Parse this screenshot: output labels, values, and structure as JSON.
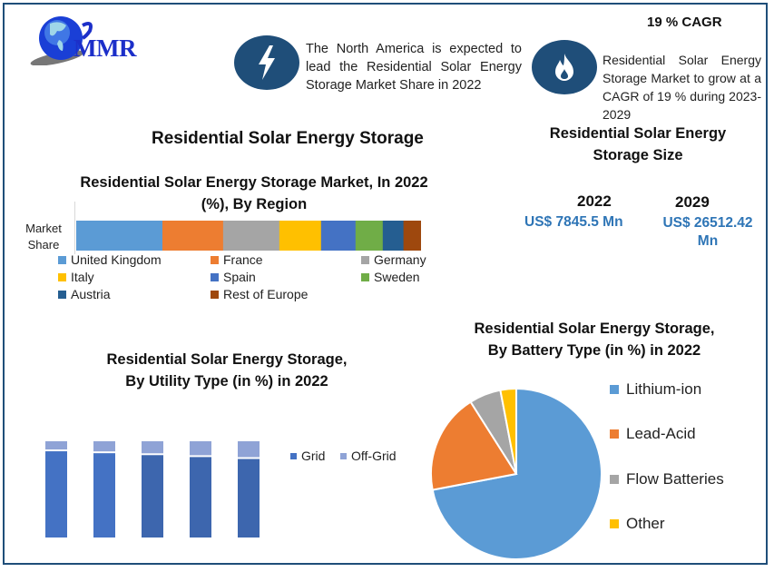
{
  "brand": {
    "logo_text": "MMR"
  },
  "highlights": {
    "cagr_label": "19 % CAGR",
    "north_america_text": "The North America is expected to lead the Residential Solar Energy Storage Market Share in 2022",
    "cagr_text": "Residential Solar Energy Storage Market to grow at a CAGR of 19 % during 2023-2029"
  },
  "main_title": "Residential Solar Energy Storage",
  "market_size": {
    "title_line1": "Residential Solar Energy",
    "title_line2": "Storage Size",
    "year1": "2022",
    "value1": "US$ 7845.5 Mn",
    "year2": "2029",
    "value2_line1": "US$ 26512.42",
    "value2_line2": "Mn"
  },
  "colors": {
    "frame": "#1f4e79",
    "accent_blue": "#2e75b6",
    "icon_circle": "#1f4e79"
  },
  "chart_data": [
    {
      "type": "bar",
      "orientation": "horizontal-stacked",
      "title_line1": "Residential Solar Energy Storage Market, In 2022",
      "title_line2": "(%), By Region",
      "categories": [
        "Market Share"
      ],
      "category_label_line1": "Market",
      "category_label_line2": "Share",
      "series": [
        {
          "name": "United Kingdom",
          "value": 25,
          "color": "#5b9bd5"
        },
        {
          "name": "France",
          "value": 17.6,
          "color": "#ed7d31"
        },
        {
          "name": "Germany",
          "value": 16.3,
          "color": "#a5a5a5"
        },
        {
          "name": "Italy",
          "value": 12.1,
          "color": "#ffc000"
        },
        {
          "name": "Spain",
          "value": 10,
          "color": "#4472c4"
        },
        {
          "name": "Sweden",
          "value": 7.9,
          "color": "#70ad47"
        },
        {
          "name": "Austria",
          "value": 6,
          "color": "#255e91"
        },
        {
          "name": "Rest of Europe",
          "value": 5.1,
          "color": "#9e480e"
        }
      ],
      "legend": "bottom"
    },
    {
      "type": "bar",
      "orientation": "vertical-stacked",
      "title_line1": "Residential Solar Energy Storage,",
      "title_line2": "By Utility Type (in %) in 2022",
      "categories": [
        "1",
        "2",
        "3",
        "4",
        "5"
      ],
      "series": [
        {
          "name": "Grid",
          "values": [
            91,
            89,
            87,
            85,
            83
          ],
          "color": "#4472c4"
        },
        {
          "name": "Off-Grid",
          "values": [
            9,
            11,
            13,
            15,
            17
          ],
          "color": "#8fa3d6"
        }
      ],
      "ylim": [
        0,
        100
      ],
      "legend": "right"
    },
    {
      "type": "pie",
      "title_line1": "Residential Solar Energy Storage,",
      "title_line2": "By Battery Type (in %) in 2022",
      "slices": [
        {
          "name": "Lithium-ion",
          "value": 72,
          "color": "#5b9bd5"
        },
        {
          "name": "Lead-Acid",
          "value": 19,
          "color": "#ed7d31"
        },
        {
          "name": "Flow Batteries",
          "value": 6,
          "color": "#a5a5a5"
        },
        {
          "name": "Other",
          "value": 3,
          "color": "#ffc000"
        }
      ],
      "legend": "right"
    }
  ]
}
